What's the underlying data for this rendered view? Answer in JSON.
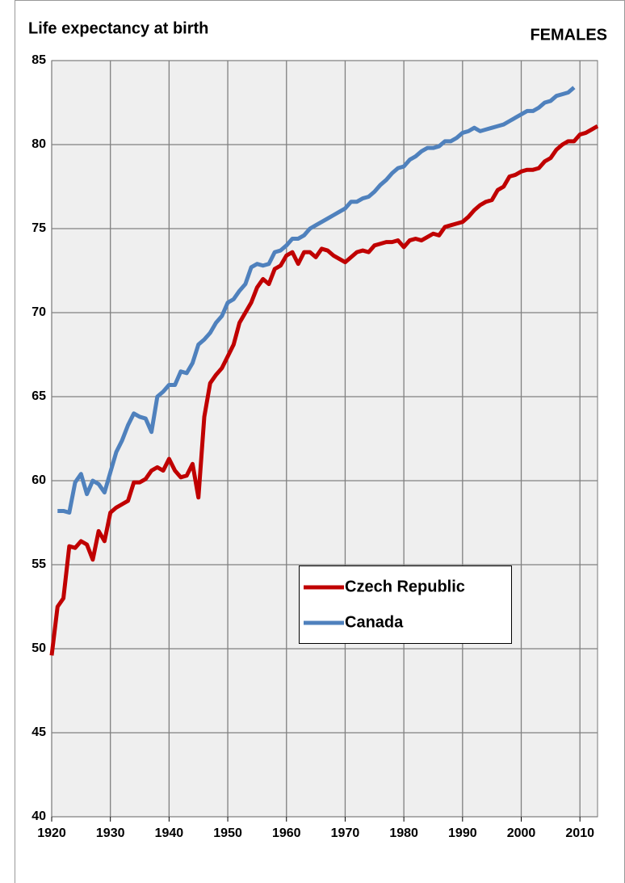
{
  "chart_data": {
    "type": "line",
    "title": "Life expectancy at birth",
    "subtitle": "FEMALES",
    "xlim": [
      1920,
      2013
    ],
    "xticks": [
      1920,
      1930,
      1940,
      1950,
      1960,
      1970,
      1980,
      1990,
      2000,
      2010
    ],
    "ylim": [
      40,
      85
    ],
    "yticks": [
      40,
      45,
      50,
      55,
      60,
      65,
      70,
      75,
      80,
      85
    ],
    "grid": true,
    "series": [
      {
        "name": "Czech Republic",
        "color": "#c00000",
        "x": [
          1920,
          1921,
          1922,
          1923,
          1924,
          1925,
          1926,
          1927,
          1928,
          1929,
          1930,
          1931,
          1932,
          1933,
          1934,
          1935,
          1936,
          1937,
          1938,
          1939,
          1940,
          1941,
          1942,
          1943,
          1944,
          1945,
          1946,
          1947,
          1948,
          1949,
          1950,
          1951,
          1952,
          1953,
          1954,
          1955,
          1956,
          1957,
          1958,
          1959,
          1960,
          1961,
          1962,
          1963,
          1964,
          1965,
          1966,
          1967,
          1968,
          1969,
          1970,
          1971,
          1972,
          1973,
          1974,
          1975,
          1976,
          1977,
          1978,
          1979,
          1980,
          1981,
          1982,
          1983,
          1984,
          1985,
          1986,
          1987,
          1988,
          1989,
          1990,
          1991,
          1992,
          1993,
          1994,
          1995,
          1996,
          1997,
          1998,
          1999,
          2000,
          2001,
          2002,
          2003,
          2004,
          2005,
          2006,
          2007,
          2008,
          2009,
          2010,
          2011,
          2012,
          2013
        ],
        "values": [
          49.6,
          52.5,
          53.0,
          56.1,
          56.0,
          56.4,
          56.2,
          55.3,
          57.0,
          56.4,
          58.1,
          58.4,
          58.6,
          58.8,
          59.9,
          59.9,
          60.1,
          60.6,
          60.8,
          60.6,
          61.3,
          60.6,
          60.2,
          60.3,
          61.0,
          59.0,
          63.8,
          65.8,
          66.3,
          66.7,
          67.4,
          68.1,
          69.4,
          70.0,
          70.6,
          71.5,
          72.0,
          71.7,
          72.6,
          72.8,
          73.4,
          73.6,
          72.9,
          73.6,
          73.6,
          73.3,
          73.8,
          73.7,
          73.4,
          73.2,
          73.0,
          73.3,
          73.6,
          73.7,
          73.6,
          74.0,
          74.1,
          74.2,
          74.2,
          74.3,
          73.9,
          74.3,
          74.4,
          74.3,
          74.5,
          74.7,
          74.6,
          75.1,
          75.2,
          75.3,
          75.4,
          75.7,
          76.1,
          76.4,
          76.6,
          76.7,
          77.3,
          77.5,
          78.1,
          78.2,
          78.4,
          78.5,
          78.5,
          78.6,
          79.0,
          79.2,
          79.7,
          80.0,
          80.2,
          80.2,
          80.6,
          80.7,
          80.9,
          81.1
        ]
      },
      {
        "name": "Canada",
        "color": "#4f81bd",
        "x": [
          1921,
          1922,
          1923,
          1924,
          1925,
          1926,
          1927,
          1928,
          1929,
          1930,
          1931,
          1932,
          1933,
          1934,
          1935,
          1936,
          1937,
          1938,
          1939,
          1940,
          1941,
          1942,
          1943,
          1944,
          1945,
          1946,
          1947,
          1948,
          1949,
          1950,
          1951,
          1952,
          1953,
          1954,
          1955,
          1956,
          1957,
          1958,
          1959,
          1960,
          1961,
          1962,
          1963,
          1964,
          1965,
          1966,
          1967,
          1968,
          1969,
          1970,
          1971,
          1972,
          1973,
          1974,
          1975,
          1976,
          1977,
          1978,
          1979,
          1980,
          1981,
          1982,
          1983,
          1984,
          1985,
          1986,
          1987,
          1988,
          1989,
          1990,
          1991,
          1992,
          1993,
          1994,
          1995,
          1996,
          1997,
          1998,
          1999,
          2000,
          2001,
          2002,
          2003,
          2004,
          2005,
          2006,
          2007,
          2008,
          2009
        ],
        "values": [
          58.2,
          58.2,
          58.1,
          59.9,
          60.4,
          59.2,
          60.0,
          59.8,
          59.3,
          60.5,
          61.7,
          62.4,
          63.3,
          64.0,
          63.8,
          63.7,
          62.9,
          65.0,
          65.3,
          65.7,
          65.7,
          66.5,
          66.4,
          67.0,
          68.1,
          68.4,
          68.8,
          69.4,
          69.8,
          70.6,
          70.8,
          71.3,
          71.7,
          72.7,
          72.9,
          72.8,
          72.9,
          73.6,
          73.7,
          74.0,
          74.4,
          74.4,
          74.6,
          75.0,
          75.2,
          75.4,
          75.6,
          75.8,
          76.0,
          76.2,
          76.6,
          76.6,
          76.8,
          76.9,
          77.2,
          77.6,
          77.9,
          78.3,
          78.6,
          78.7,
          79.1,
          79.3,
          79.6,
          79.8,
          79.8,
          79.9,
          80.2,
          80.2,
          80.4,
          80.7,
          80.8,
          81.0,
          80.8,
          80.9,
          81.0,
          81.1,
          81.2,
          81.4,
          81.6,
          81.8,
          82.0,
          82.0,
          82.2,
          82.5,
          82.6,
          82.9,
          83.0,
          83.1,
          83.4
        ]
      }
    ]
  }
}
